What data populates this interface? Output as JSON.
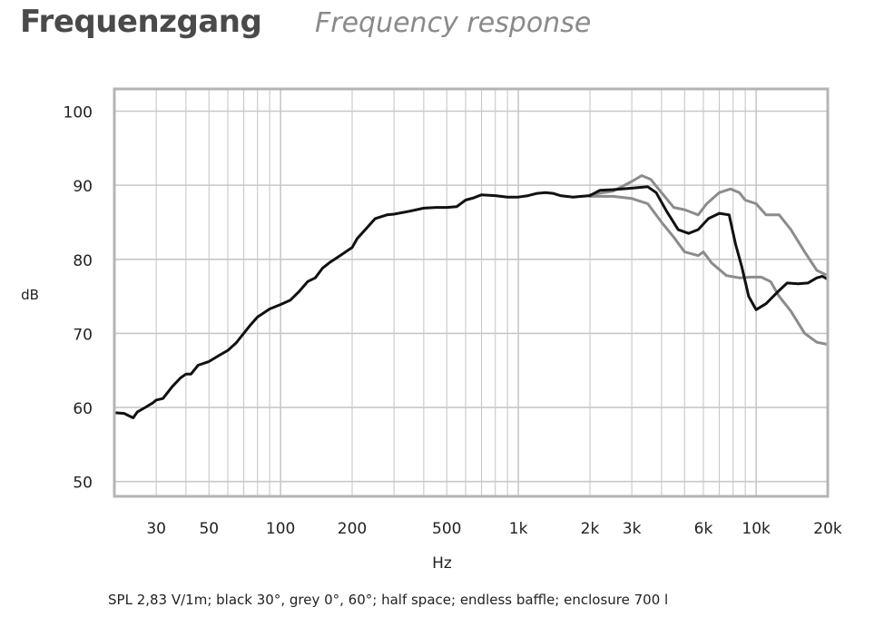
{
  "header": {
    "title": "Frequenzgang",
    "subtitle": "Frequency response"
  },
  "caption": "SPL 2,83 V/1m; black 30°, grey 0°, 60°; half space; endless baffle; enclosure 700 l",
  "colors": {
    "black": "#111111",
    "grey": "#8c8c8c",
    "grid": "#c8c8c8",
    "frame": "#b4b4b4"
  },
  "chart_data": {
    "type": "line",
    "xscale": "log",
    "xlabel": "Hz",
    "ylabel": "dB",
    "xlim": [
      20,
      20000
    ],
    "ylim": [
      48,
      103
    ],
    "grid": true,
    "x_ticks": [
      {
        "value": 30,
        "label": "30"
      },
      {
        "value": 50,
        "label": "50"
      },
      {
        "value": 100,
        "label": "100"
      },
      {
        "value": 200,
        "label": "200"
      },
      {
        "value": 500,
        "label": "500"
      },
      {
        "value": 1000,
        "label": "1k"
      },
      {
        "value": 2000,
        "label": "2k"
      },
      {
        "value": 3000,
        "label": "3k"
      },
      {
        "value": 6000,
        "label": "6k"
      },
      {
        "value": 10000,
        "label": "10k"
      },
      {
        "value": 20000,
        "label": "20k"
      }
    ],
    "y_ticks": [
      50,
      60,
      70,
      80,
      90,
      100
    ],
    "series": [
      {
        "color": "#8c8c8c",
        "points": [
          [
            2000,
            88.7
          ],
          [
            2500,
            89.2
          ],
          [
            3000,
            90.5
          ],
          [
            3300,
            91.3
          ],
          [
            3600,
            90.8
          ],
          [
            4000,
            89
          ],
          [
            4500,
            87
          ],
          [
            5000,
            86.7
          ],
          [
            5700,
            86
          ],
          [
            6200,
            87.5
          ],
          [
            7000,
            89
          ],
          [
            7800,
            89.5
          ],
          [
            8500,
            89
          ],
          [
            9000,
            88
          ],
          [
            10000,
            87.5
          ],
          [
            11000,
            86
          ],
          [
            12500,
            86
          ],
          [
            14000,
            84
          ],
          [
            16000,
            81
          ],
          [
            18000,
            78.5
          ],
          [
            20000,
            77.8
          ]
        ]
      },
      {
        "color": "#8c8c8c",
        "points": [
          [
            2000,
            88.5
          ],
          [
            2500,
            88.5
          ],
          [
            3000,
            88.2
          ],
          [
            3500,
            87.5
          ],
          [
            4000,
            85
          ],
          [
            4500,
            83
          ],
          [
            5000,
            81
          ],
          [
            5700,
            80.5
          ],
          [
            6000,
            81
          ],
          [
            6500,
            79.5
          ],
          [
            7500,
            77.8
          ],
          [
            8500,
            77.5
          ],
          [
            9500,
            77.6
          ],
          [
            10500,
            77.6
          ],
          [
            11500,
            77
          ],
          [
            12500,
            75
          ],
          [
            14000,
            73
          ],
          [
            16000,
            70
          ],
          [
            18000,
            68.8
          ],
          [
            20000,
            68.5
          ]
        ]
      },
      {
        "color": "#111111",
        "points": [
          [
            20,
            59.3
          ],
          [
            22,
            59.2
          ],
          [
            24,
            58.6
          ],
          [
            25,
            59.4
          ],
          [
            27,
            60
          ],
          [
            29,
            60.6
          ],
          [
            30,
            61
          ],
          [
            32,
            61.2
          ],
          [
            35,
            62.8
          ],
          [
            38,
            64
          ],
          [
            40,
            64.5
          ],
          [
            42,
            64.5
          ],
          [
            45,
            65.7
          ],
          [
            50,
            66.2
          ],
          [
            55,
            67
          ],
          [
            60,
            67.7
          ],
          [
            65,
            68.7
          ],
          [
            70,
            70
          ],
          [
            75,
            71.2
          ],
          [
            80,
            72.2
          ],
          [
            90,
            73.3
          ],
          [
            100,
            73.9
          ],
          [
            110,
            74.5
          ],
          [
            120,
            75.7
          ],
          [
            130,
            77
          ],
          [
            140,
            77.5
          ],
          [
            150,
            78.8
          ],
          [
            160,
            79.5
          ],
          [
            180,
            80.6
          ],
          [
            200,
            81.6
          ],
          [
            210,
            82.8
          ],
          [
            230,
            84.2
          ],
          [
            250,
            85.5
          ],
          [
            280,
            86
          ],
          [
            300,
            86.1
          ],
          [
            350,
            86.5
          ],
          [
            400,
            86.9
          ],
          [
            450,
            87
          ],
          [
            500,
            87
          ],
          [
            550,
            87.1
          ],
          [
            600,
            88
          ],
          [
            650,
            88.3
          ],
          [
            700,
            88.7
          ],
          [
            800,
            88.6
          ],
          [
            900,
            88.4
          ],
          [
            1000,
            88.4
          ],
          [
            1100,
            88.6
          ],
          [
            1200,
            88.9
          ],
          [
            1300,
            89
          ],
          [
            1400,
            88.9
          ],
          [
            1500,
            88.6
          ],
          [
            1700,
            88.4
          ],
          [
            2000,
            88.6
          ],
          [
            2200,
            89.3
          ],
          [
            2500,
            89.4
          ],
          [
            3000,
            89.6
          ],
          [
            3500,
            89.8
          ],
          [
            3800,
            89
          ],
          [
            4200,
            86.5
          ],
          [
            4700,
            84
          ],
          [
            5200,
            83.5
          ],
          [
            5700,
            84
          ],
          [
            6300,
            85.5
          ],
          [
            7000,
            86.2
          ],
          [
            7700,
            86
          ],
          [
            8200,
            82
          ],
          [
            8700,
            79
          ],
          [
            9300,
            75
          ],
          [
            10000,
            73.2
          ],
          [
            11000,
            74
          ],
          [
            12500,
            75.8
          ],
          [
            13500,
            76.8
          ],
          [
            15000,
            76.7
          ],
          [
            16500,
            76.8
          ],
          [
            18000,
            77.5
          ],
          [
            19000,
            77.7
          ],
          [
            20000,
            77.3
          ]
        ]
      }
    ]
  }
}
